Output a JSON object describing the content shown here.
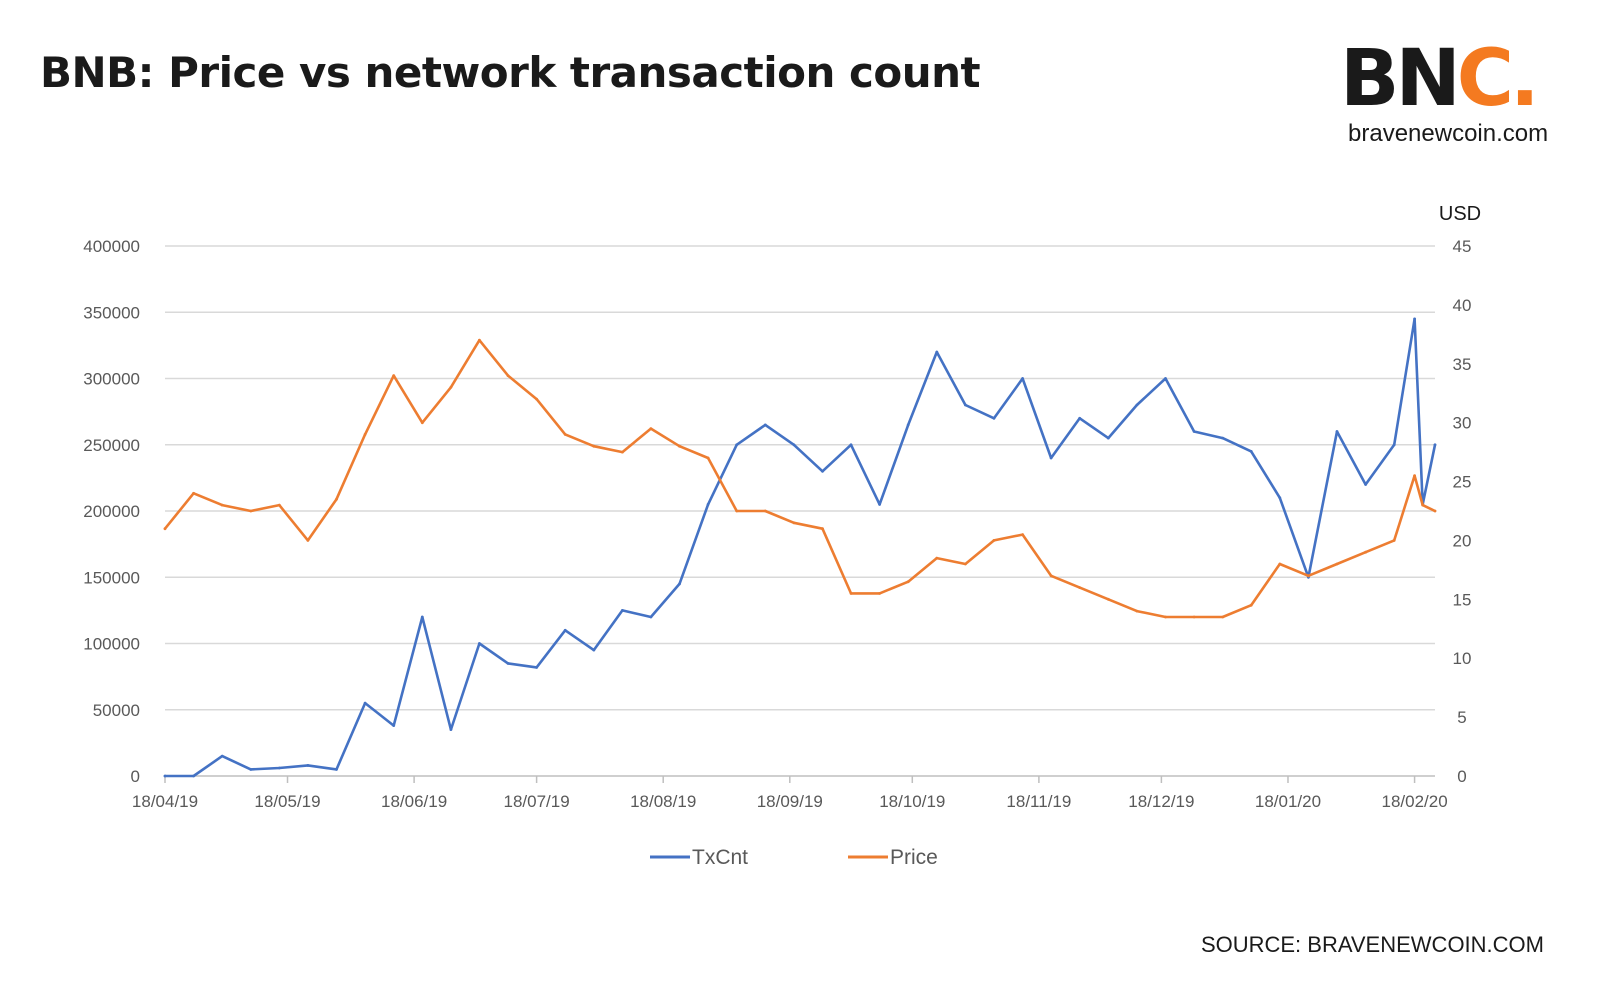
{
  "header": {
    "title": "BNB: Price vs network transaction count"
  },
  "logo": {
    "letters_main": "BN",
    "letters_accent": "C",
    "dot": ".",
    "url": "bravenewcoin.com",
    "accent_color": "#f47a20"
  },
  "footer": {
    "source": "SOURCE: BRAVENEWCOIN.COM"
  },
  "chart_data": {
    "type": "line",
    "title": "BNB: Price vs network transaction count",
    "x_tick_labels": [
      "18/04/19",
      "18/05/19",
      "18/06/19",
      "18/07/19",
      "18/08/19",
      "18/09/19",
      "18/10/19",
      "18/11/19",
      "18/12/19",
      "18/01/20",
      "18/02/20"
    ],
    "y_left": {
      "ticks": [
        0,
        50000,
        100000,
        150000,
        200000,
        250000,
        300000,
        350000,
        400000
      ],
      "ylim": [
        0,
        400000
      ],
      "label": ""
    },
    "y_right": {
      "ticks": [
        0,
        5,
        10,
        15,
        20,
        25,
        30,
        35,
        40,
        45
      ],
      "ylim": [
        0,
        45
      ],
      "label": "USD"
    },
    "grid": true,
    "legend": {
      "position": "bottom"
    },
    "series": [
      {
        "name": "TxCnt",
        "axis": "left",
        "color": "#4472c4",
        "x": [
          "18/04/19",
          "25/04/19",
          "02/05/19",
          "09/05/19",
          "16/05/19",
          "23/05/19",
          "30/05/19",
          "06/06/19",
          "13/06/19",
          "20/06/19",
          "27/06/19",
          "04/07/19",
          "11/07/19",
          "18/07/19",
          "25/07/19",
          "01/08/19",
          "08/08/19",
          "15/08/19",
          "22/08/19",
          "29/08/19",
          "05/09/19",
          "12/09/19",
          "19/09/19",
          "26/09/19",
          "03/10/19",
          "10/10/19",
          "17/10/19",
          "24/10/19",
          "31/10/19",
          "07/11/19",
          "14/11/19",
          "21/11/19",
          "28/11/19",
          "05/12/19",
          "12/12/19",
          "19/12/19",
          "26/12/19",
          "02/01/20",
          "09/01/20",
          "16/01/20",
          "23/01/20",
          "30/01/20",
          "06/02/20",
          "13/02/20",
          "18/02/20",
          "20/02/20",
          "23/02/20"
        ],
        "values": [
          0,
          0,
          15000,
          5000,
          6000,
          8000,
          5000,
          55000,
          38000,
          120000,
          35000,
          100000,
          85000,
          82000,
          110000,
          95000,
          125000,
          120000,
          145000,
          205000,
          250000,
          265000,
          250000,
          230000,
          250000,
          205000,
          265000,
          320000,
          280000,
          270000,
          300000,
          240000,
          270000,
          255000,
          280000,
          300000,
          260000,
          255000,
          245000,
          210000,
          150000,
          260000,
          220000,
          250000,
          345000,
          205000,
          250000
        ]
      },
      {
        "name": "Price",
        "axis": "right",
        "color": "#ed7d31",
        "x": [
          "18/04/19",
          "25/04/19",
          "02/05/19",
          "09/05/19",
          "16/05/19",
          "23/05/19",
          "30/05/19",
          "06/06/19",
          "13/06/19",
          "20/06/19",
          "27/06/19",
          "04/07/19",
          "11/07/19",
          "18/07/19",
          "25/07/19",
          "01/08/19",
          "08/08/19",
          "15/08/19",
          "22/08/19",
          "29/08/19",
          "05/09/19",
          "12/09/19",
          "19/09/19",
          "26/09/19",
          "03/10/19",
          "10/10/19",
          "17/10/19",
          "24/10/19",
          "31/10/19",
          "07/11/19",
          "14/11/19",
          "21/11/19",
          "28/11/19",
          "05/12/19",
          "12/12/19",
          "19/12/19",
          "26/12/19",
          "02/01/20",
          "09/01/20",
          "16/01/20",
          "23/01/20",
          "30/01/20",
          "06/02/20",
          "13/02/20",
          "18/02/20",
          "20/02/20",
          "23/02/20"
        ],
        "values": [
          21,
          24,
          23,
          22.5,
          23,
          20,
          23.5,
          29,
          34,
          30,
          33,
          37,
          34,
          32,
          29,
          28,
          27.5,
          29.5,
          28,
          27,
          22.5,
          22.5,
          21.5,
          21,
          15.5,
          15.5,
          16.5,
          18.5,
          18,
          20,
          20.5,
          17,
          16,
          15,
          14,
          13.5,
          13.5,
          13.5,
          14.5,
          18,
          17,
          18,
          19,
          20,
          25.5,
          23,
          22.5
        ]
      }
    ]
  }
}
